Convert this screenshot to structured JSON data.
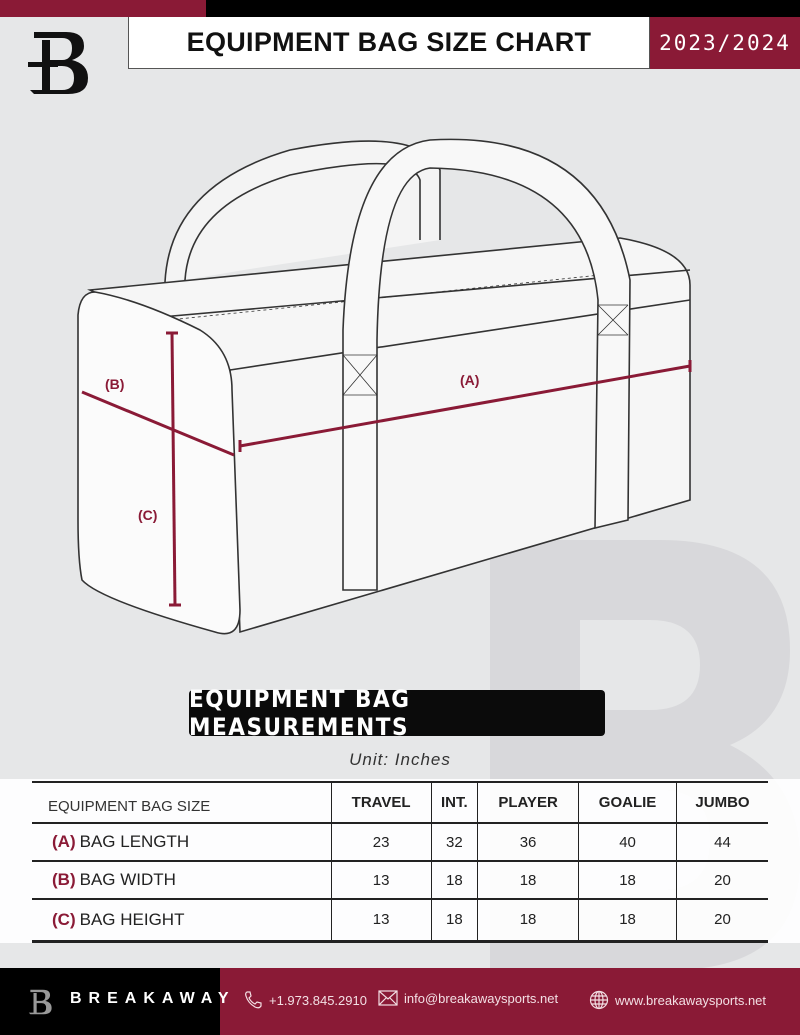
{
  "header": {
    "title": "EQUIPMENT BAG SIZE CHART",
    "season": "2023/2024",
    "logo_letter": "B"
  },
  "section_title": "EQUIPMENT BAG MEASUREMENTS",
  "unit_label": "Unit: Inches",
  "diagram": {
    "label_a": "(A)",
    "label_b": "(B)",
    "label_c": "(C)"
  },
  "table": {
    "header": [
      "EQUIPMENT BAG SIZE",
      "TRAVEL",
      "INT.",
      "PLAYER",
      "GOALIE",
      "JUMBO"
    ],
    "rows": [
      {
        "key": "(A)",
        "name": "BAG LENGTH",
        "values": [
          "23",
          "32",
          "36",
          "40",
          "44"
        ]
      },
      {
        "key": "(B)",
        "name": "BAG WIDTH",
        "values": [
          "13",
          "18",
          "18",
          "18",
          "20"
        ]
      },
      {
        "key": "(C)",
        "name": "BAG HEIGHT",
        "values": [
          "13",
          "18",
          "18",
          "18",
          "20"
        ]
      }
    ]
  },
  "footer": {
    "brand": "BREAKAWAY",
    "phone": "+1.973.845.2910",
    "email": "info@breakawaysports.net",
    "website": "www.breakawaysports.net"
  },
  "colors": {
    "accent": "#8a1a36",
    "dark": "#000000",
    "background": "#e6e7e8"
  }
}
